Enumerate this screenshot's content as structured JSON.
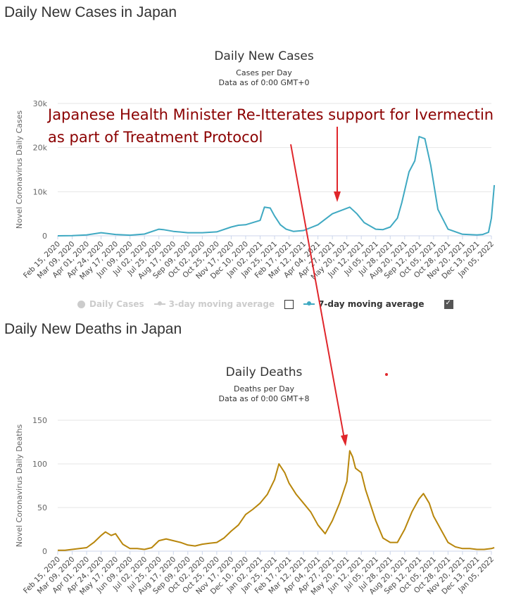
{
  "sections": {
    "cases_heading": "Daily New Cases in Japan",
    "deaths_heading": "Daily New Deaths in Japan"
  },
  "legend": {
    "daily_cases": "Daily Cases",
    "three_day": "3-day moving average",
    "seven_day": "7-day moving average",
    "seven_day_checked": true,
    "three_day_checked": false
  },
  "annotation": {
    "line1": "Japanese Health Minister Re-Itterates support for Ivermectin",
    "line2": "as part of Treatment Protocol",
    "color": "#8b0000",
    "arrow_color": "#e0262b"
  },
  "chart_data": [
    {
      "type": "line",
      "title": "Daily New Cases",
      "subtitle": "Cases per Day",
      "subtitle2": "Data as of 0:00 GMT+0",
      "ylabel": "Novel Coronavirus Daily Cases",
      "ylim": [
        0,
        30000
      ],
      "yticks": [
        0,
        10000,
        20000,
        30000
      ],
      "ytick_labels": [
        "0",
        "10k",
        "20k",
        "30k"
      ],
      "color": "#3fa9c2",
      "x_labels": [
        "Feb 15, 2020",
        "Mar 09, 2020",
        "Apr 01, 2020",
        "Apr 24, 2020",
        "May 17, 2020",
        "Jun 09, 2020",
        "Jul 02, 2020",
        "Jul 25, 2020",
        "Aug 17, 2020",
        "Sep 09, 2020",
        "Oct 02, 2020",
        "Oct 25, 2020",
        "Nov 17, 2020",
        "Dec 10, 2020",
        "Jan 02, 2021",
        "Jan 25, 2021",
        "Feb 17, 2021",
        "Mar 12, 2021",
        "Apr 04, 2021",
        "Apr 27, 2021",
        "May 20, 2021",
        "Jun 12, 2021",
        "Jul 05, 2021",
        "Jul 28, 2021",
        "Aug 20, 2021",
        "Sep 12, 2021",
        "Oct 05, 2021",
        "Oct 28, 2021",
        "Nov 20, 2021",
        "Dec 13, 2021",
        "Jan 05, 2022"
      ],
      "series": [
        {
          "name": "7-day moving average",
          "x": [
            0,
            1,
            2,
            3,
            3.5,
            4,
            5,
            6,
            7,
            7.3,
            8,
            9,
            10,
            11,
            12,
            12.5,
            13,
            13.5,
            14,
            14.3,
            14.7,
            15,
            15.4,
            15.8,
            16.3,
            17,
            18,
            19,
            19.8,
            20.2,
            20.7,
            21.2,
            22,
            22.5,
            23,
            23.5,
            23.8,
            24.3,
            24.7,
            25,
            25.4,
            25.8,
            26.3,
            27,
            28,
            29,
            29.4,
            29.8,
            30,
            30.2
          ],
          "values": [
            0,
            50,
            200,
            700,
            500,
            300,
            150,
            400,
            1500,
            1400,
            1000,
            700,
            700,
            900,
            2000,
            2400,
            2500,
            3000,
            3500,
            6500,
            6300,
            4500,
            2500,
            1500,
            1000,
            1200,
            2500,
            5000,
            6000,
            6500,
            5000,
            3000,
            1500,
            1400,
            2000,
            4000,
            7500,
            14500,
            17000,
            22500,
            22000,
            16000,
            6000,
            1500,
            350,
            200,
            300,
            800,
            4000,
            11500
          ]
        }
      ]
    },
    {
      "type": "line",
      "title": "Daily Deaths",
      "subtitle": "Deaths per Day",
      "subtitle2": "Data as of 0:00 GMT+8",
      "ylabel": "Novel Coronavirus Daily Deaths",
      "ylim": [
        0,
        150
      ],
      "yticks": [
        0,
        50,
        100,
        150
      ],
      "ytick_labels": [
        "0",
        "50",
        "100",
        "150"
      ],
      "color": "#b8860b",
      "x_labels": [
        "Feb 15, 2020",
        "Mar 09, 2020",
        "Apr 01, 2020",
        "Apr 24, 2020",
        "May 17, 2020",
        "Jun 09, 2020",
        "Jul 02, 2020",
        "Jul 25, 2020",
        "Aug 17, 2020",
        "Sep 09, 2020",
        "Oct 02, 2020",
        "Oct 25, 2020",
        "Nov 17, 2020",
        "Dec 10, 2020",
        "Jan 02, 2021",
        "Jan 25, 2021",
        "Feb 17, 2021",
        "Mar 12, 2021",
        "Apr 04, 2021",
        "Apr 27, 2021",
        "May 20, 2021",
        "Jun 12, 2021",
        "Jul 05, 2021",
        "Jul 28, 2021",
        "Aug 20, 2021",
        "Sep 12, 2021",
        "Oct 05, 2021",
        "Oct 28, 2021",
        "Nov 20, 2021",
        "Dec 13, 2021",
        "Jan 05, 2022"
      ],
      "series": [
        {
          "name": "Daily deaths",
          "x": [
            0,
            0.5,
            1,
            1.5,
            2,
            2.5,
            3,
            3.3,
            3.7,
            4,
            4.5,
            5,
            5.5,
            6,
            6.5,
            7,
            7.5,
            8,
            8.5,
            9,
            9.5,
            10,
            10.5,
            11,
            11.5,
            12,
            12.5,
            13,
            13.5,
            14,
            14.5,
            15,
            15.3,
            15.7,
            16,
            16.5,
            17,
            17.5,
            18,
            18.5,
            19,
            19.5,
            20,
            20.2,
            20.4,
            20.6,
            21,
            21.3,
            21.7,
            22,
            22.5,
            23,
            23.5,
            24,
            24.5,
            25,
            25.3,
            25.7,
            26,
            26.5,
            27,
            27.5,
            28,
            28.5,
            29,
            29.5,
            30,
            30.2
          ],
          "values": [
            1,
            1,
            2,
            3,
            4,
            10,
            18,
            22,
            18,
            20,
            8,
            3,
            3,
            2,
            4,
            12,
            14,
            12,
            10,
            7,
            6,
            8,
            9,
            10,
            15,
            23,
            30,
            42,
            48,
            55,
            65,
            82,
            100,
            90,
            78,
            65,
            55,
            45,
            30,
            20,
            35,
            55,
            80,
            115,
            108,
            95,
            90,
            70,
            50,
            35,
            15,
            10,
            10,
            25,
            45,
            60,
            66,
            55,
            40,
            25,
            10,
            5,
            3,
            3,
            2,
            2,
            3,
            4
          ]
        }
      ]
    }
  ]
}
